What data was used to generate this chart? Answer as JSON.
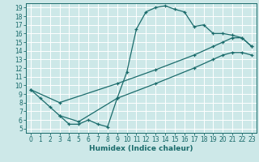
{
  "xlabel": "Humidex (Indice chaleur)",
  "bg_color": "#cde8e8",
  "grid_color": "#b0d8d8",
  "line_color": "#1a6b6b",
  "xlim": [
    -0.5,
    23.5
  ],
  "ylim": [
    4.5,
    19.5
  ],
  "xticks": [
    0,
    1,
    2,
    3,
    4,
    5,
    6,
    7,
    8,
    9,
    10,
    11,
    12,
    13,
    14,
    15,
    16,
    17,
    18,
    19,
    20,
    21,
    22,
    23
  ],
  "yticks": [
    5,
    6,
    7,
    8,
    9,
    10,
    11,
    12,
    13,
    14,
    15,
    16,
    17,
    18,
    19
  ],
  "curve1_x": [
    0,
    1,
    2,
    3,
    4,
    5,
    6,
    7,
    8,
    9,
    10,
    11,
    12,
    13,
    14,
    15,
    16,
    17,
    18,
    19,
    20,
    21,
    22,
    23
  ],
  "curve1_y": [
    9.5,
    8.5,
    7.5,
    6.5,
    5.5,
    5.5,
    6.0,
    5.5,
    5.2,
    8.5,
    11.5,
    16.5,
    18.5,
    19.0,
    19.2,
    18.8,
    18.5,
    16.8,
    17.0,
    16.0,
    16.0,
    15.8,
    15.5,
    14.5
  ],
  "curve2_x": [
    0,
    3,
    9,
    13,
    17,
    19,
    20,
    21,
    22,
    23
  ],
  "curve2_y": [
    9.5,
    8.0,
    10.2,
    11.8,
    13.5,
    14.5,
    15.0,
    15.5,
    15.5,
    14.5
  ],
  "curve3_x": [
    3,
    5,
    9,
    13,
    17,
    19,
    20,
    21,
    22,
    23
  ],
  "curve3_y": [
    6.5,
    5.8,
    8.5,
    10.2,
    12.0,
    13.0,
    13.5,
    13.8,
    13.8,
    13.5
  ],
  "xlabel_fontsize": 6.5,
  "tick_fontsize": 5.5
}
